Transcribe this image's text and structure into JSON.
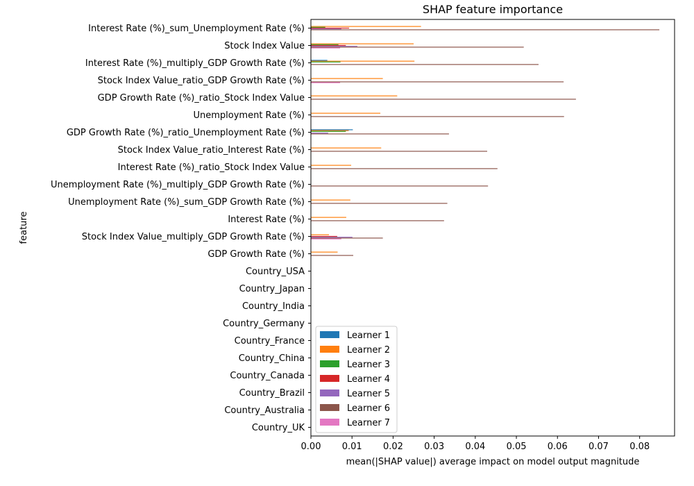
{
  "chart_data": {
    "type": "bar",
    "orientation": "horizontal",
    "title": "SHAP feature importance",
    "xlabel": "mean(|SHAP value|) average impact on model output magnitude",
    "ylabel": "feature",
    "xlim": [
      0,
      0.0885
    ],
    "xticks": [
      "0.00",
      "0.01",
      "0.02",
      "0.03",
      "0.04",
      "0.05",
      "0.06",
      "0.07",
      "0.08"
    ],
    "grid": false,
    "legend_position": "lower-left",
    "categories": [
      "Interest Rate (%)_sum_Unemployment Rate (%)",
      "Stock Index Value",
      "Interest Rate (%)_multiply_GDP Growth Rate (%)",
      "Stock Index Value_ratio_GDP Growth Rate (%)",
      "GDP Growth Rate (%)_ratio_Stock Index Value",
      "Unemployment Rate (%)",
      "GDP Growth Rate (%)_ratio_Unemployment Rate (%)",
      "Stock Index Value_ratio_Interest Rate (%)",
      "Interest Rate (%)_ratio_Stock Index Value",
      "Unemployment Rate (%)_multiply_GDP Growth Rate (%)",
      "Unemployment Rate (%)_sum_GDP Growth Rate (%)",
      "Interest Rate (%)",
      "Stock Index Value_multiply_GDP Growth Rate (%)",
      "GDP Growth Rate (%)",
      "Country_USA",
      "Country_Japan",
      "Country_India",
      "Country_Germany",
      "Country_France",
      "Country_China",
      "Country_Canada",
      "Country_Brazil",
      "Country_Australia",
      "Country_UK"
    ],
    "series": [
      {
        "name": "Learner 1",
        "color": "#1f77b4",
        "values": [
          0,
          0,
          0.004,
          0,
          0,
          0,
          0.0102,
          0,
          0,
          0,
          0,
          0,
          0,
          0,
          0,
          0,
          0,
          0,
          0,
          0,
          0,
          0,
          0,
          0
        ]
      },
      {
        "name": "Learner 2",
        "color": "#ff7f0e",
        "values": [
          0.0268,
          0.025,
          0.0252,
          0.0175,
          0.021,
          0.0169,
          0.0092,
          0.0171,
          0.0098,
          0,
          0.0096,
          0.0086,
          0.0044,
          0.0065,
          0,
          0,
          0,
          0,
          0,
          0,
          0,
          0,
          0,
          0
        ]
      },
      {
        "name": "Learner 3",
        "color": "#2ca02c",
        "values": [
          0.0035,
          0.0067,
          0.0072,
          0,
          0,
          0,
          0.0085,
          0,
          0,
          0,
          0,
          0,
          0,
          0,
          0,
          0,
          0,
          0,
          0,
          0,
          0,
          0,
          0,
          0
        ]
      },
      {
        "name": "Learner 4",
        "color": "#d62728",
        "values": [
          0.0093,
          0.0085,
          0,
          0,
          0,
          0,
          0,
          0,
          0,
          0,
          0,
          0,
          0.0064,
          0,
          0,
          0,
          0,
          0,
          0,
          0,
          0,
          0,
          0,
          0
        ]
      },
      {
        "name": "Learner 5",
        "color": "#9467bd",
        "values": [
          0.0074,
          0.0113,
          0,
          0,
          0,
          0,
          0.0042,
          0,
          0,
          0,
          0,
          0,
          0.0101,
          0,
          0,
          0,
          0,
          0,
          0,
          0,
          0,
          0,
          0,
          0
        ]
      },
      {
        "name": "Learner 6",
        "color": "#8c564b",
        "values": [
          0.0848,
          0.0518,
          0.0554,
          0.0615,
          0.0645,
          0.0616,
          0.0336,
          0.0429,
          0.0454,
          0.0431,
          0.0332,
          0.0324,
          0.0175,
          0.0103,
          0,
          0,
          0,
          0,
          0,
          0,
          0,
          0,
          0,
          0
        ]
      },
      {
        "name": "Learner 7",
        "color": "#e377c2",
        "values": [
          0,
          0.0071,
          0,
          0.0071,
          0,
          0,
          0,
          0,
          0,
          0,
          0,
          0,
          0.0074,
          0,
          0,
          0,
          0,
          0,
          0,
          0,
          0,
          0,
          0,
          0
        ]
      }
    ]
  }
}
